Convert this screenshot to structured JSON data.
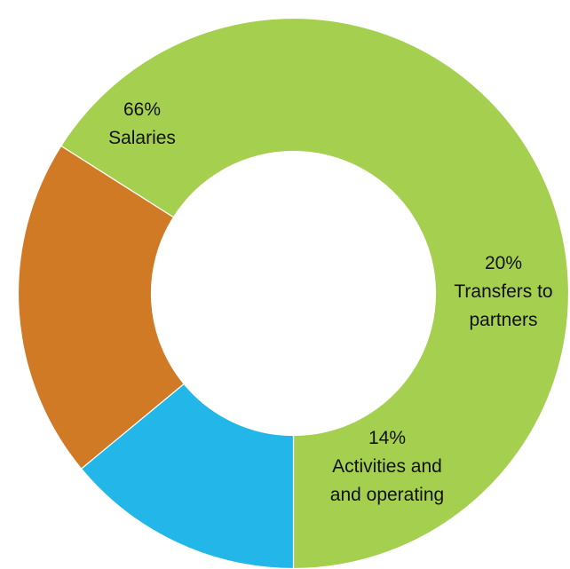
{
  "chart_data": {
    "type": "pie",
    "slices": [
      {
        "name": "Salaries",
        "value": 66,
        "color": "#A5CF4E",
        "label_lines": [
          "66%",
          "Salaries"
        ]
      },
      {
        "name": "Transfers to partners",
        "value": 20,
        "color": "#D07A26",
        "label_lines": [
          "20%",
          "Transfers to",
          "partners"
        ]
      },
      {
        "name": "Activities and operating",
        "value": 14,
        "color": "#22B7E8",
        "label_lines": [
          "14%",
          "Activities and",
          "and operating"
        ]
      }
    ],
    "legend": "none",
    "grid": false
  }
}
